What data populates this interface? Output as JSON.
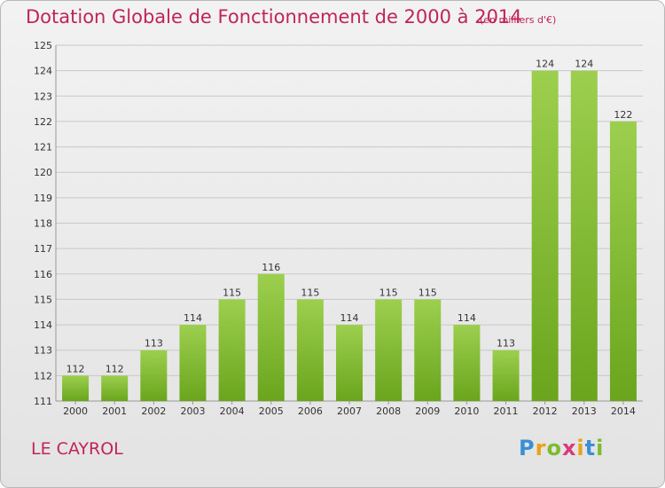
{
  "header": {
    "title": "Dotation Globale de Fonctionnement de 2000 à 2014",
    "unit": "(en milliers d'€)"
  },
  "footer": {
    "commune": "LE CAYROL",
    "logo_letters": [
      "P",
      "r",
      "o",
      "x",
      "i",
      "t",
      "i"
    ],
    "logo_colors": [
      "#3a8fd6",
      "#e8a317",
      "#7dbb2e",
      "#d93a7a",
      "#e8a317",
      "#3a8fd6",
      "#7dbb2e"
    ]
  },
  "colors": {
    "title": "#c0245c",
    "bar_light": "#9ccf4e",
    "bar_dark": "#6aa51d",
    "grid": "#c8c8c8",
    "text": "#333333"
  },
  "chart_data": {
    "type": "bar",
    "title": "Dotation Globale de Fonctionnement de 2000 à 2014",
    "subtitle": "(en milliers d'€)",
    "categories": [
      "2000",
      "2001",
      "2002",
      "2003",
      "2004",
      "2005",
      "2006",
      "2007",
      "2008",
      "2009",
      "2010",
      "2011",
      "2012",
      "2013",
      "2014"
    ],
    "values": [
      112,
      112,
      113,
      114,
      115,
      116,
      115,
      114,
      115,
      115,
      114,
      113,
      124,
      124,
      122
    ],
    "ylim": [
      111,
      125
    ],
    "yticks": [
      111,
      112,
      113,
      114,
      115,
      116,
      117,
      118,
      119,
      120,
      121,
      122,
      123,
      124,
      125
    ],
    "grid": true,
    "xlabel": "",
    "ylabel": ""
  }
}
